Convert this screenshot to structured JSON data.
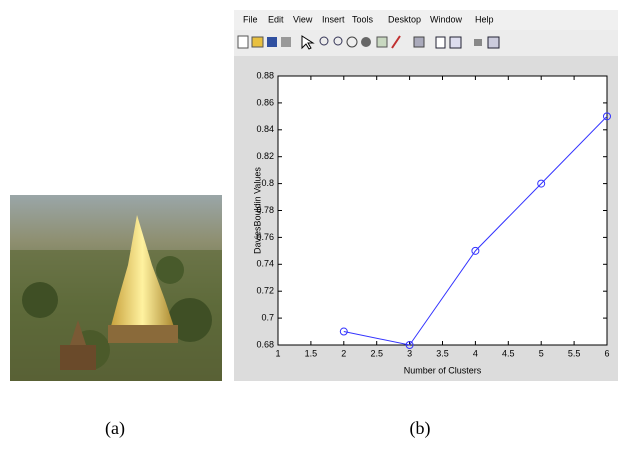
{
  "menu": [
    "File",
    "Edit",
    "View",
    "Insert",
    "Tools",
    "Desktop",
    "Window",
    "Help"
  ],
  "captions": [
    "(a)",
    "(b)"
  ],
  "chart_data": {
    "type": "line",
    "x_label": "Number of Clusters",
    "y_label": "DaviesBouldin Values",
    "x": [
      2,
      3,
      4,
      5,
      6
    ],
    "series": [
      {
        "color": "#3333ff",
        "values": [
          0.69,
          0.68,
          0.75,
          0.8,
          0.85
        ]
      }
    ],
    "xlim": [
      1,
      6
    ],
    "xticks": [
      1,
      1.5,
      2,
      2.5,
      3,
      3.5,
      4,
      4.5,
      5,
      5.5,
      6
    ],
    "ylim": [
      0.68,
      0.88
    ],
    "yticks": [
      0.68,
      0.7,
      0.72,
      0.74,
      0.76,
      0.78,
      0.8,
      0.82,
      0.84,
      0.86,
      0.88
    ],
    "grid": false,
    "marker": "circle"
  }
}
